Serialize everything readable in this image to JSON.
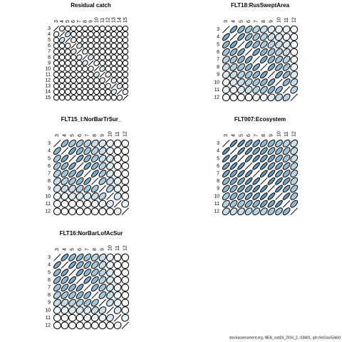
{
  "chart_data": [
    {
      "type": "correlation",
      "title": "Residual catch",
      "labels": [
        3,
        4,
        5,
        6,
        7,
        8,
        9,
        10,
        11,
        12,
        13,
        14,
        15
      ],
      "values": [
        [
          1
        ],
        [
          0.1,
          1
        ],
        [
          0,
          0.3,
          1
        ],
        [
          0,
          0,
          0.1,
          1
        ],
        [
          0,
          0,
          0,
          0.2,
          1
        ],
        [
          0,
          0,
          0,
          0,
          0.1,
          1
        ],
        [
          0,
          0,
          0,
          0,
          0,
          0.2,
          1
        ],
        [
          0,
          0,
          0,
          0,
          0,
          0,
          0.1,
          1
        ],
        [
          0,
          0,
          0,
          0,
          0,
          0,
          0,
          0.2,
          1
        ],
        [
          0,
          0,
          0,
          0,
          0,
          0,
          0,
          0,
          0.1,
          1
        ],
        [
          0,
          0,
          0,
          0,
          0,
          0,
          0,
          0,
          0,
          0.1,
          1
        ],
        [
          0,
          0,
          0,
          0,
          0,
          0,
          0,
          0,
          0,
          0,
          0.2,
          1
        ],
        [
          0,
          0,
          0,
          0,
          0,
          0,
          0,
          0,
          0,
          0,
          0,
          0.1,
          1
        ]
      ]
    },
    {
      "type": "correlation",
      "title": "FLT18:RusSweptArea",
      "labels": [
        3,
        4,
        5,
        6,
        7,
        8,
        9,
        10,
        11,
        12
      ],
      "values": [
        [
          1
        ],
        [
          0.7,
          1
        ],
        [
          0.6,
          0.7,
          1
        ],
        [
          0.5,
          0.6,
          0.7,
          1
        ],
        [
          0.4,
          0.5,
          0.6,
          0.7,
          1
        ],
        [
          0.3,
          0.4,
          0.5,
          0.6,
          0.7,
          1
        ],
        [
          0.2,
          0.3,
          0.4,
          0.5,
          0.6,
          0.7,
          1
        ],
        [
          0.1,
          0.2,
          0.3,
          0.4,
          0.5,
          0.6,
          0.7,
          1
        ],
        [
          0.1,
          0.1,
          0.2,
          0.3,
          0.4,
          0.5,
          0.6,
          0.6,
          1
        ],
        [
          0,
          0,
          0,
          0,
          0.1,
          0.1,
          0.2,
          0.3,
          0.4,
          1
        ]
      ]
    },
    {
      "type": "correlation",
      "title": "FLT15_I:NorBarTrSur_",
      "labels": [
        3,
        4,
        5,
        6,
        7,
        8,
        9,
        10,
        11,
        12
      ],
      "values": [
        [
          1
        ],
        [
          0.6,
          1
        ],
        [
          0.5,
          0.7,
          1
        ],
        [
          0.5,
          0.6,
          0.7,
          1
        ],
        [
          0.4,
          0.5,
          0.6,
          0.7,
          1
        ],
        [
          0.3,
          0.4,
          0.5,
          0.6,
          0.7,
          1
        ],
        [
          0.2,
          0.3,
          0.3,
          0.4,
          0.5,
          0.5,
          1
        ],
        [
          0.1,
          0.1,
          0.2,
          0.2,
          0.2,
          0.3,
          0.4,
          1
        ],
        [
          0,
          0,
          0,
          0,
          0,
          0.1,
          0.1,
          0.2,
          1
        ],
        [
          0,
          0,
          0,
          0,
          0,
          0,
          0,
          0,
          0.1,
          1
        ]
      ]
    },
    {
      "type": "correlation",
      "title": "FLT007:Ecosystem",
      "labels": [
        3,
        4,
        5,
        6,
        7,
        8,
        9,
        10,
        11,
        12
      ],
      "values": [
        [
          1
        ],
        [
          0.8,
          1
        ],
        [
          0.8,
          0.8,
          1
        ],
        [
          0.7,
          0.8,
          0.8,
          1
        ],
        [
          0.7,
          0.7,
          0.8,
          0.8,
          1
        ],
        [
          0.6,
          0.7,
          0.7,
          0.8,
          0.8,
          1
        ],
        [
          0.6,
          0.6,
          0.7,
          0.7,
          0.8,
          0.8,
          1
        ],
        [
          0.5,
          0.6,
          0.6,
          0.7,
          0.7,
          0.8,
          0.8,
          1
        ],
        [
          0.4,
          0.5,
          0.5,
          0.6,
          0.6,
          0.7,
          0.7,
          0.8,
          1
        ],
        [
          0.3,
          0.3,
          0.3,
          0.4,
          0.4,
          0.4,
          0.5,
          0.5,
          0.6,
          1
        ]
      ]
    },
    {
      "type": "correlation",
      "title": "FLT16:NorBarLofAcSur",
      "labels": [
        3,
        4,
        5,
        6,
        7,
        8,
        9,
        10,
        11,
        12
      ],
      "values": [
        [
          1
        ],
        [
          0.7,
          1
        ],
        [
          0.6,
          0.7,
          1
        ],
        [
          0.6,
          0.6,
          0.7,
          1
        ],
        [
          0.5,
          0.6,
          0.6,
          0.7,
          1
        ],
        [
          0.4,
          0.5,
          0.5,
          0.6,
          0.6,
          1
        ],
        [
          0.3,
          0.3,
          0.4,
          0.4,
          0.5,
          0.5,
          1
        ],
        [
          0.1,
          0.1,
          0.2,
          0.2,
          0.2,
          0.3,
          0.3,
          1
        ],
        [
          0,
          0,
          0,
          0,
          0.1,
          0.1,
          0.1,
          0.2,
          1
        ],
        [
          0,
          0,
          0,
          0,
          0,
          0,
          0,
          0,
          0.1,
          1
        ]
      ]
    }
  ],
  "footer": "stockassessment.org, NEA_cod24_2016_2, r18401, git:c9c61ac53a0d"
}
